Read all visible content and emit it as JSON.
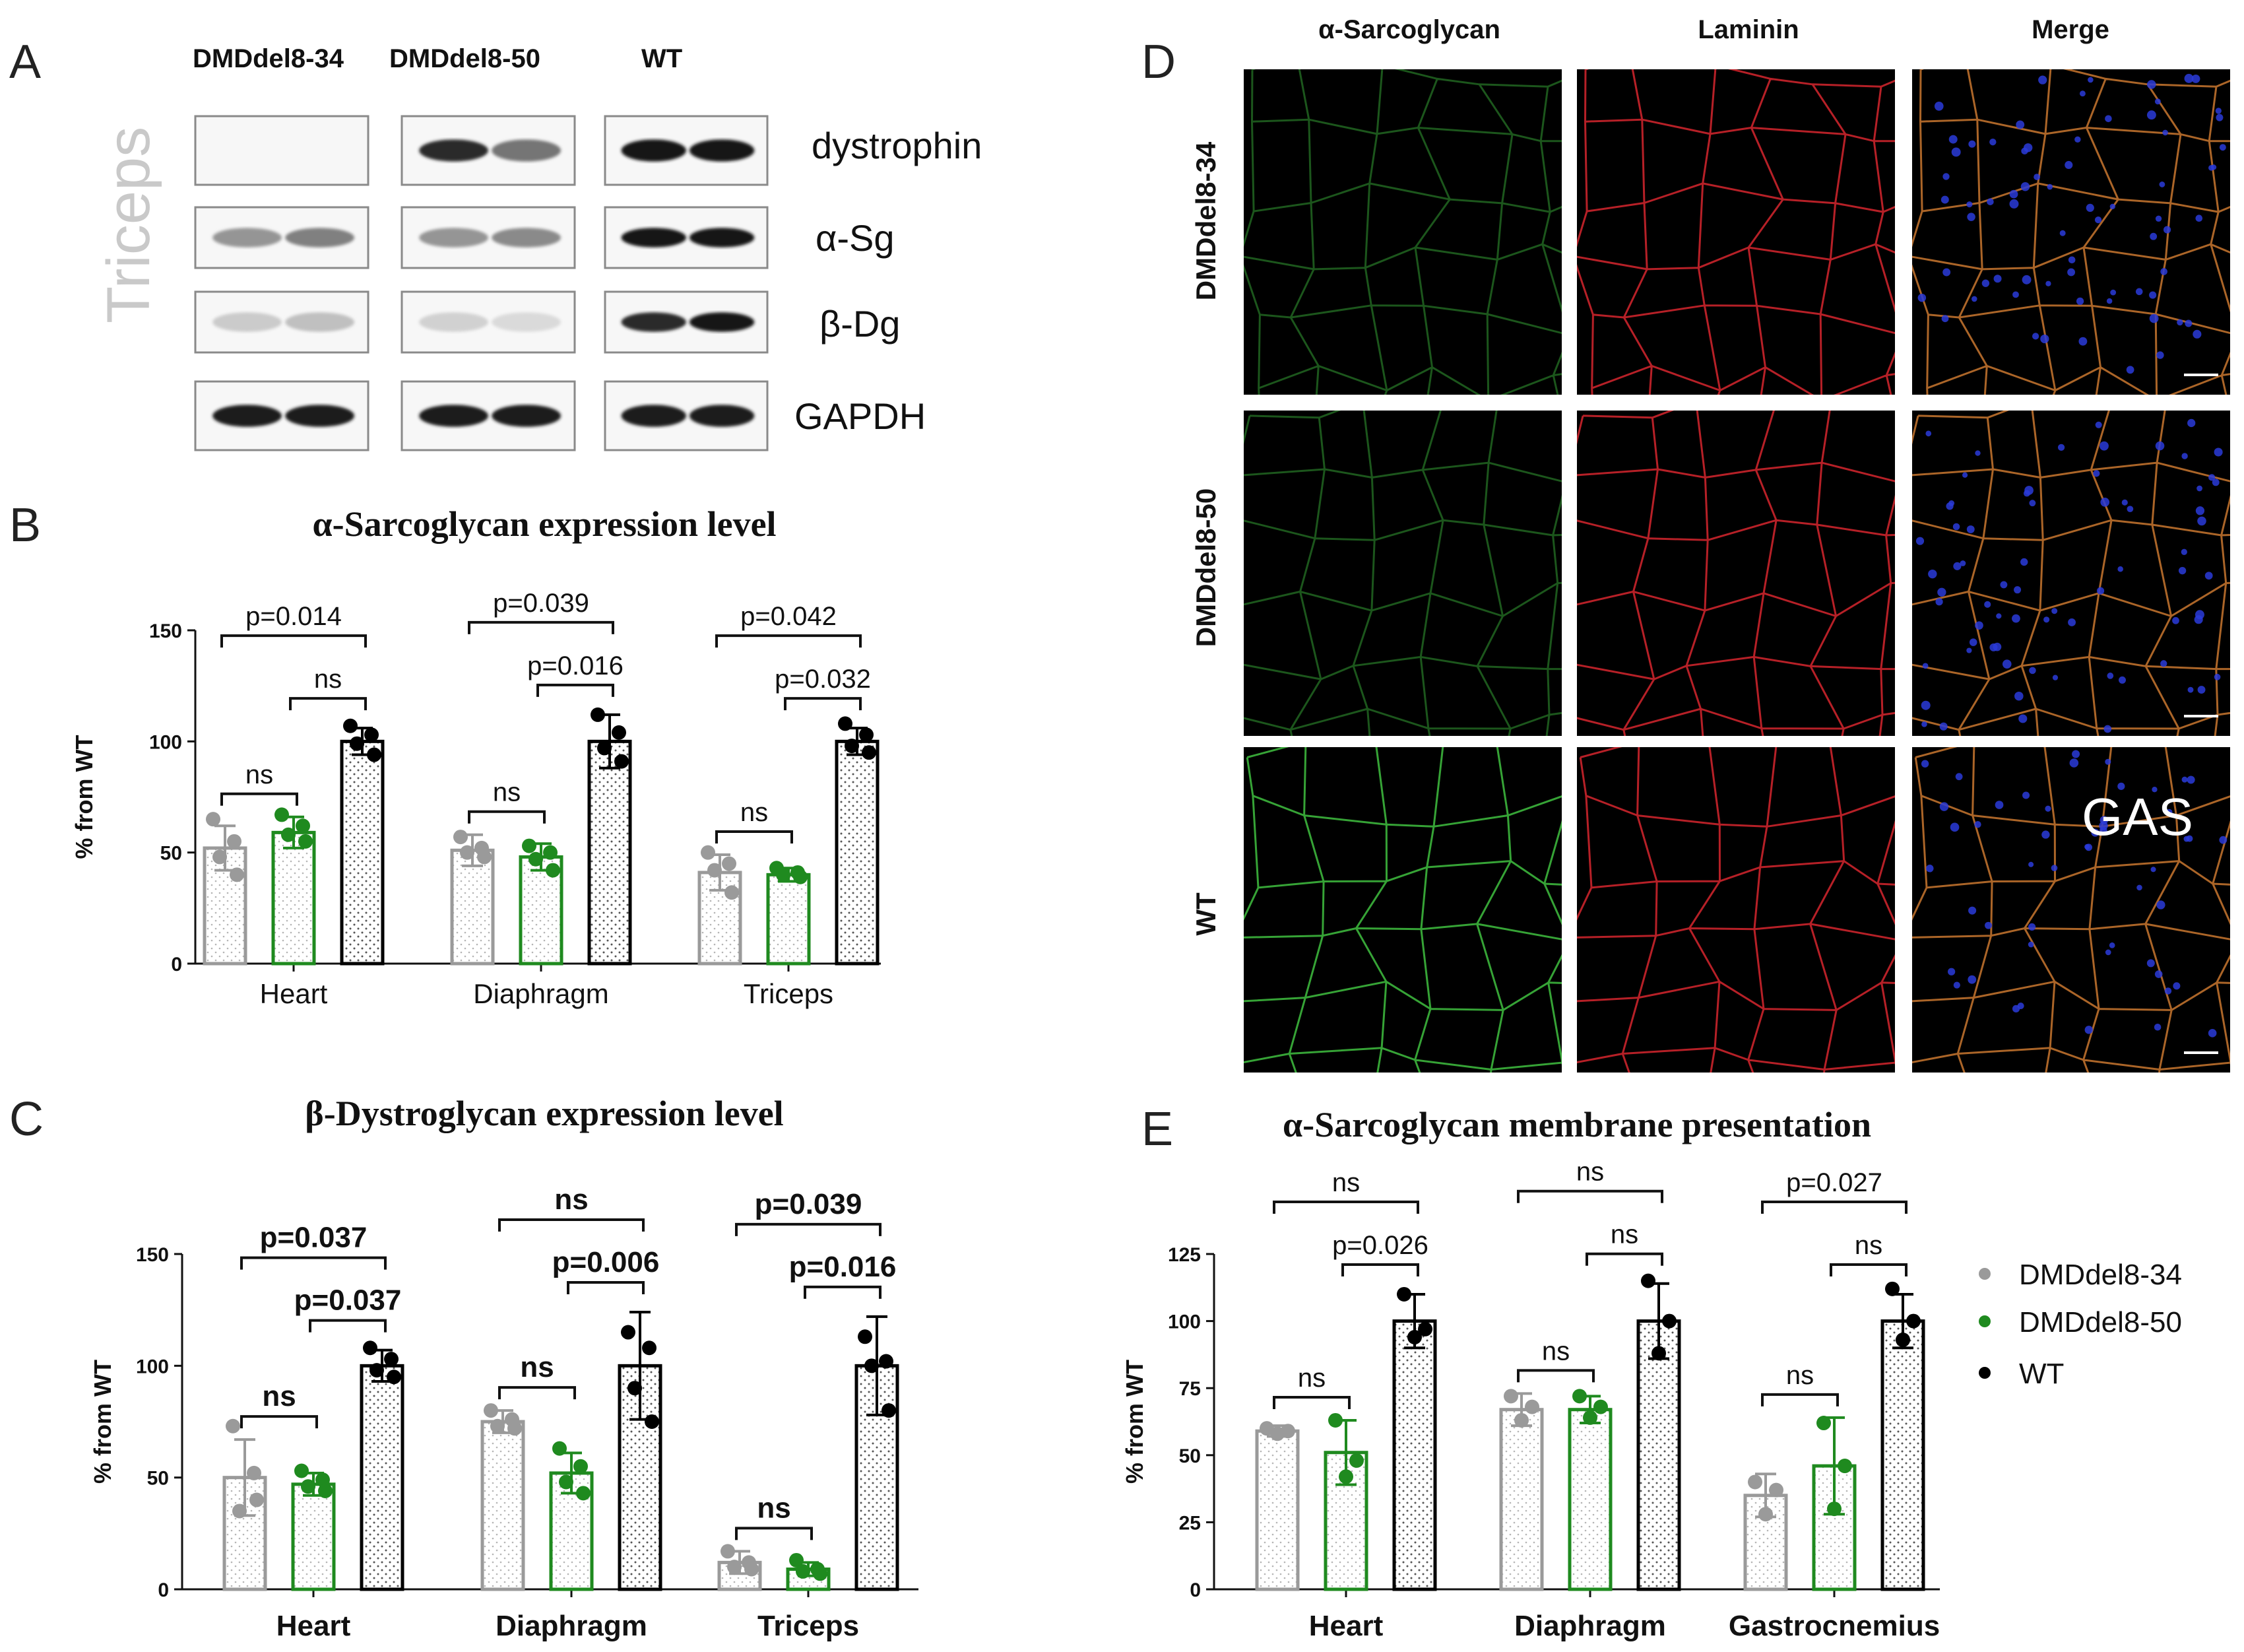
{
  "colors": {
    "DMDdel8-34": "#9a9a9a",
    "DMDdel8-50": "#1f8a1f",
    "WT": "#000000"
  },
  "panel_letters": [
    "A",
    "B",
    "C",
    "D",
    "E"
  ],
  "blot": {
    "tissue_label": "Triceps",
    "groups": [
      "DMDdel8-34",
      "DMDdel8-50",
      "WT"
    ],
    "proteins": [
      "dystrophin",
      "α-Sg",
      "β-Dg",
      "GAPDH"
    ],
    "band_intensity": [
      [
        [
          0,
          0
        ],
        [
          0.9,
          0.55
        ],
        [
          1,
          1
        ]
      ],
      [
        [
          0.4,
          0.5
        ],
        [
          0.4,
          0.45
        ],
        [
          1,
          1
        ]
      ],
      [
        [
          0.15,
          0.2
        ],
        [
          0.12,
          0.08
        ],
        [
          0.9,
          1
        ]
      ],
      [
        [
          0.95,
          0.95
        ],
        [
          0.95,
          0.95
        ],
        [
          0.95,
          0.95
        ]
      ]
    ]
  },
  "images": {
    "columns": [
      "α-Sarcoglycan",
      "Laminin",
      "Merge"
    ],
    "rows": [
      "DMDdel8-34",
      "DMDdel8-50",
      "WT"
    ],
    "tissue_label": "GAS"
  },
  "legend": [
    "DMDdel8-34",
    "DMDdel8-50",
    "WT"
  ],
  "chart_data": [
    {
      "panel": "B",
      "type": "bar",
      "title": "α-Sarcoglycan expression level",
      "ylabel": "% from WT",
      "xlabel": "",
      "ylim": [
        0,
        150
      ],
      "yticks": [
        0,
        50,
        100,
        150
      ],
      "categories": [
        "Heart",
        "Diaphragm",
        "Triceps"
      ],
      "series": [
        {
          "name": "DMDdel8-34",
          "values": [
            52,
            51,
            41
          ],
          "err": [
            10,
            7,
            8
          ],
          "points": [
            [
              65,
              55,
              48,
              40
            ],
            [
              57,
              52,
              50,
              48
            ],
            [
              50,
              45,
              42,
              32
            ]
          ]
        },
        {
          "name": "DMDdel8-50",
          "values": [
            59,
            48,
            40
          ],
          "err": [
            7,
            6,
            3
          ],
          "points": [
            [
              67,
              62,
              58,
              55
            ],
            [
              53,
              50,
              47,
              42
            ],
            [
              43,
              41,
              40,
              39
            ]
          ]
        },
        {
          "name": "WT",
          "values": [
            100,
            100,
            100
          ],
          "err": [
            6,
            12,
            6
          ],
          "points": [
            [
              107,
              103,
              99,
              94
            ],
            [
              112,
              104,
              97,
              91
            ],
            [
              108,
              103,
              98,
              95
            ]
          ]
        }
      ],
      "comparisons": [
        {
          "category": "Heart",
          "pair": [
            "DMDdel8-34",
            "WT"
          ],
          "label": "p=0.014"
        },
        {
          "category": "Heart",
          "pair": [
            "DMDdel8-50",
            "WT"
          ],
          "label": "ns"
        },
        {
          "category": "Heart",
          "pair": [
            "DMDdel8-34",
            "DMDdel8-50"
          ],
          "label": "ns"
        },
        {
          "category": "Diaphragm",
          "pair": [
            "DMDdel8-34",
            "WT"
          ],
          "label": "p=0.039"
        },
        {
          "category": "Diaphragm",
          "pair": [
            "DMDdel8-50",
            "WT"
          ],
          "label": "p=0.016"
        },
        {
          "category": "Diaphragm",
          "pair": [
            "DMDdel8-34",
            "DMDdel8-50"
          ],
          "label": "ns"
        },
        {
          "category": "Triceps",
          "pair": [
            "DMDdel8-34",
            "WT"
          ],
          "label": "p=0.042"
        },
        {
          "category": "Triceps",
          "pair": [
            "DMDdel8-50",
            "WT"
          ],
          "label": "p=0.032"
        },
        {
          "category": "Triceps",
          "pair": [
            "DMDdel8-34",
            "DMDdel8-50"
          ],
          "label": "ns"
        }
      ]
    },
    {
      "panel": "C",
      "type": "bar",
      "title": "β-Dystroglycan expression level",
      "ylabel": "% from WT",
      "xlabel": "",
      "ylim": [
        0,
        150
      ],
      "yticks": [
        0,
        50,
        100,
        150
      ],
      "categories": [
        "Heart",
        "Diaphragm",
        "Triceps"
      ],
      "series": [
        {
          "name": "DMDdel8-34",
          "values": [
            50,
            75,
            12
          ],
          "err": [
            17,
            5,
            5
          ],
          "points": [
            [
              73,
              52,
              35,
              40
            ],
            [
              80,
              76,
              73,
              72
            ],
            [
              17,
              12,
              10,
              9
            ]
          ]
        },
        {
          "name": "DMDdel8-50",
          "values": [
            47,
            52,
            9
          ],
          "err": [
            5,
            9,
            3
          ],
          "points": [
            [
              53,
              49,
              46,
              44
            ],
            [
              63,
              55,
              48,
              43
            ],
            [
              13,
              9,
              8,
              7
            ]
          ]
        },
        {
          "name": "WT",
          "values": [
            100,
            100,
            100
          ],
          "err": [
            7,
            24,
            22
          ],
          "points": [
            [
              108,
              103,
              98,
              95
            ],
            [
              115,
              108,
              90,
              75
            ],
            [
              113,
              102,
              100,
              80
            ]
          ]
        }
      ],
      "comparisons": [
        {
          "category": "Heart",
          "pair": [
            "DMDdel8-34",
            "WT"
          ],
          "label": "p=0.037"
        },
        {
          "category": "Heart",
          "pair": [
            "DMDdel8-50",
            "WT"
          ],
          "label": "p=0.037"
        },
        {
          "category": "Heart",
          "pair": [
            "DMDdel8-34",
            "DMDdel8-50"
          ],
          "label": "ns"
        },
        {
          "category": "Diaphragm",
          "pair": [
            "DMDdel8-34",
            "WT"
          ],
          "label": "ns"
        },
        {
          "category": "Diaphragm",
          "pair": [
            "DMDdel8-50",
            "WT"
          ],
          "label": "p=0.006"
        },
        {
          "category": "Diaphragm",
          "pair": [
            "DMDdel8-34",
            "DMDdel8-50"
          ],
          "label": "ns"
        },
        {
          "category": "Triceps",
          "pair": [
            "DMDdel8-34",
            "WT"
          ],
          "label": "p=0.039"
        },
        {
          "category": "Triceps",
          "pair": [
            "DMDdel8-50",
            "WT"
          ],
          "label": "p=0.016"
        },
        {
          "category": "Triceps",
          "pair": [
            "DMDdel8-34",
            "DMDdel8-50"
          ],
          "label": "ns"
        }
      ]
    },
    {
      "panel": "E",
      "type": "bar",
      "title": "α-Sarcoglycan membrane presentation",
      "ylabel": "% from WT",
      "xlabel": "",
      "ylim": [
        0,
        125
      ],
      "yticks": [
        0,
        25,
        50,
        75,
        100,
        125
      ],
      "categories": [
        "Heart",
        "Diaphragm",
        "Gastrocnemius"
      ],
      "series": [
        {
          "name": "DMDdel8-34",
          "values": [
            59,
            67,
            35
          ],
          "err": [
            2,
            6,
            8
          ],
          "points": [
            [
              60,
              59,
              58
            ],
            [
              72,
              68,
              63
            ],
            [
              40,
              37,
              28
            ]
          ]
        },
        {
          "name": "DMDdel8-50",
          "values": [
            51,
            67,
            46
          ],
          "err": [
            12,
            5,
            18
          ],
          "points": [
            [
              63,
              48,
              42
            ],
            [
              72,
              68,
              64
            ],
            [
              62,
              46,
              30
            ]
          ]
        },
        {
          "name": "WT",
          "values": [
            100,
            100,
            100
          ],
          "err": [
            10,
            14,
            10
          ],
          "points": [
            [
              110,
              97,
              94
            ],
            [
              115,
              100,
              88
            ],
            [
              112,
              100,
              93
            ]
          ]
        }
      ],
      "comparisons": [
        {
          "category": "Heart",
          "pair": [
            "DMDdel8-34",
            "WT"
          ],
          "label": "ns"
        },
        {
          "category": "Heart",
          "pair": [
            "DMDdel8-50",
            "WT"
          ],
          "label": "p=0.026"
        },
        {
          "category": "Heart",
          "pair": [
            "DMDdel8-34",
            "DMDdel8-50"
          ],
          "label": "ns"
        },
        {
          "category": "Diaphragm",
          "pair": [
            "DMDdel8-34",
            "WT"
          ],
          "label": "ns"
        },
        {
          "category": "Diaphragm",
          "pair": [
            "DMDdel8-50",
            "WT"
          ],
          "label": "ns"
        },
        {
          "category": "Diaphragm",
          "pair": [
            "DMDdel8-34",
            "DMDdel8-50"
          ],
          "label": "ns"
        },
        {
          "category": "Gastrocnemius",
          "pair": [
            "DMDdel8-34",
            "WT"
          ],
          "label": "p=0.027"
        },
        {
          "category": "Gastrocnemius",
          "pair": [
            "DMDdel8-50",
            "WT"
          ],
          "label": "ns"
        },
        {
          "category": "Gastrocnemius",
          "pair": [
            "DMDdel8-34",
            "DMDdel8-50"
          ],
          "label": "ns"
        }
      ]
    }
  ]
}
